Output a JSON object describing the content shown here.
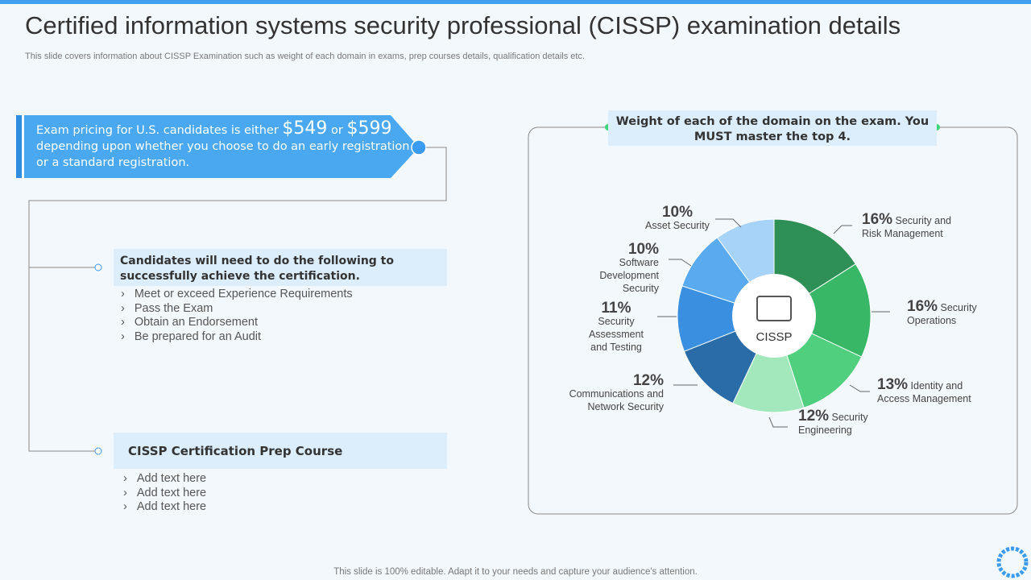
{
  "header": {
    "title": "Certified information systems security professional (CISSP) examination details",
    "subtitle": "This slide covers information about CISSP Examination such as weight of each domain in exams, prep courses details, qualification details etc."
  },
  "pricing": {
    "text_start": "Exam pricing for U.S. candidates is either",
    "price_1": "$549",
    "joiner": "or",
    "price_2": "$599",
    "text_end": "depending upon whether you choose to do an early registration or a standard registration."
  },
  "candidates": {
    "heading": "Candidates will need to do the following to successfully achieve the certification.",
    "items": [
      "Meet or exceed Experience Requirements",
      "Pass the Exam",
      "Obtain an Endorsement",
      "Be prepared for an Audit"
    ]
  },
  "prep_course": {
    "heading": "CISSP Certification Prep Course",
    "items": [
      "Add text here",
      "Add text here",
      "Add text here"
    ]
  },
  "chart_data": {
    "type": "pie",
    "title": "Weight of each of the domain on the exam. You MUST master the top 4.",
    "center_label": "CISSP",
    "categories": [
      "Security and Risk Management",
      "Security Operations",
      "Identity and Access Management",
      "Security Engineering",
      "Communications and Network Security",
      "Security Assessment and Testing",
      "Software Development Security",
      "Asset Security"
    ],
    "values": [
      16,
      16,
      13,
      12,
      12,
      11,
      10,
      10
    ],
    "value_labels": [
      "16%",
      "16%",
      "13%",
      "12%",
      "12%",
      "11%",
      "10%",
      "10%"
    ],
    "colors": [
      "#2e8f57",
      "#38b766",
      "#50d07f",
      "#a3e8bd",
      "#2a6ca8",
      "#3a8fe0",
      "#5aaaf0",
      "#a6d3f7"
    ]
  },
  "footer": {
    "text": "This slide is 100% editable. Adapt it to your needs and capture your audience's attention."
  }
}
